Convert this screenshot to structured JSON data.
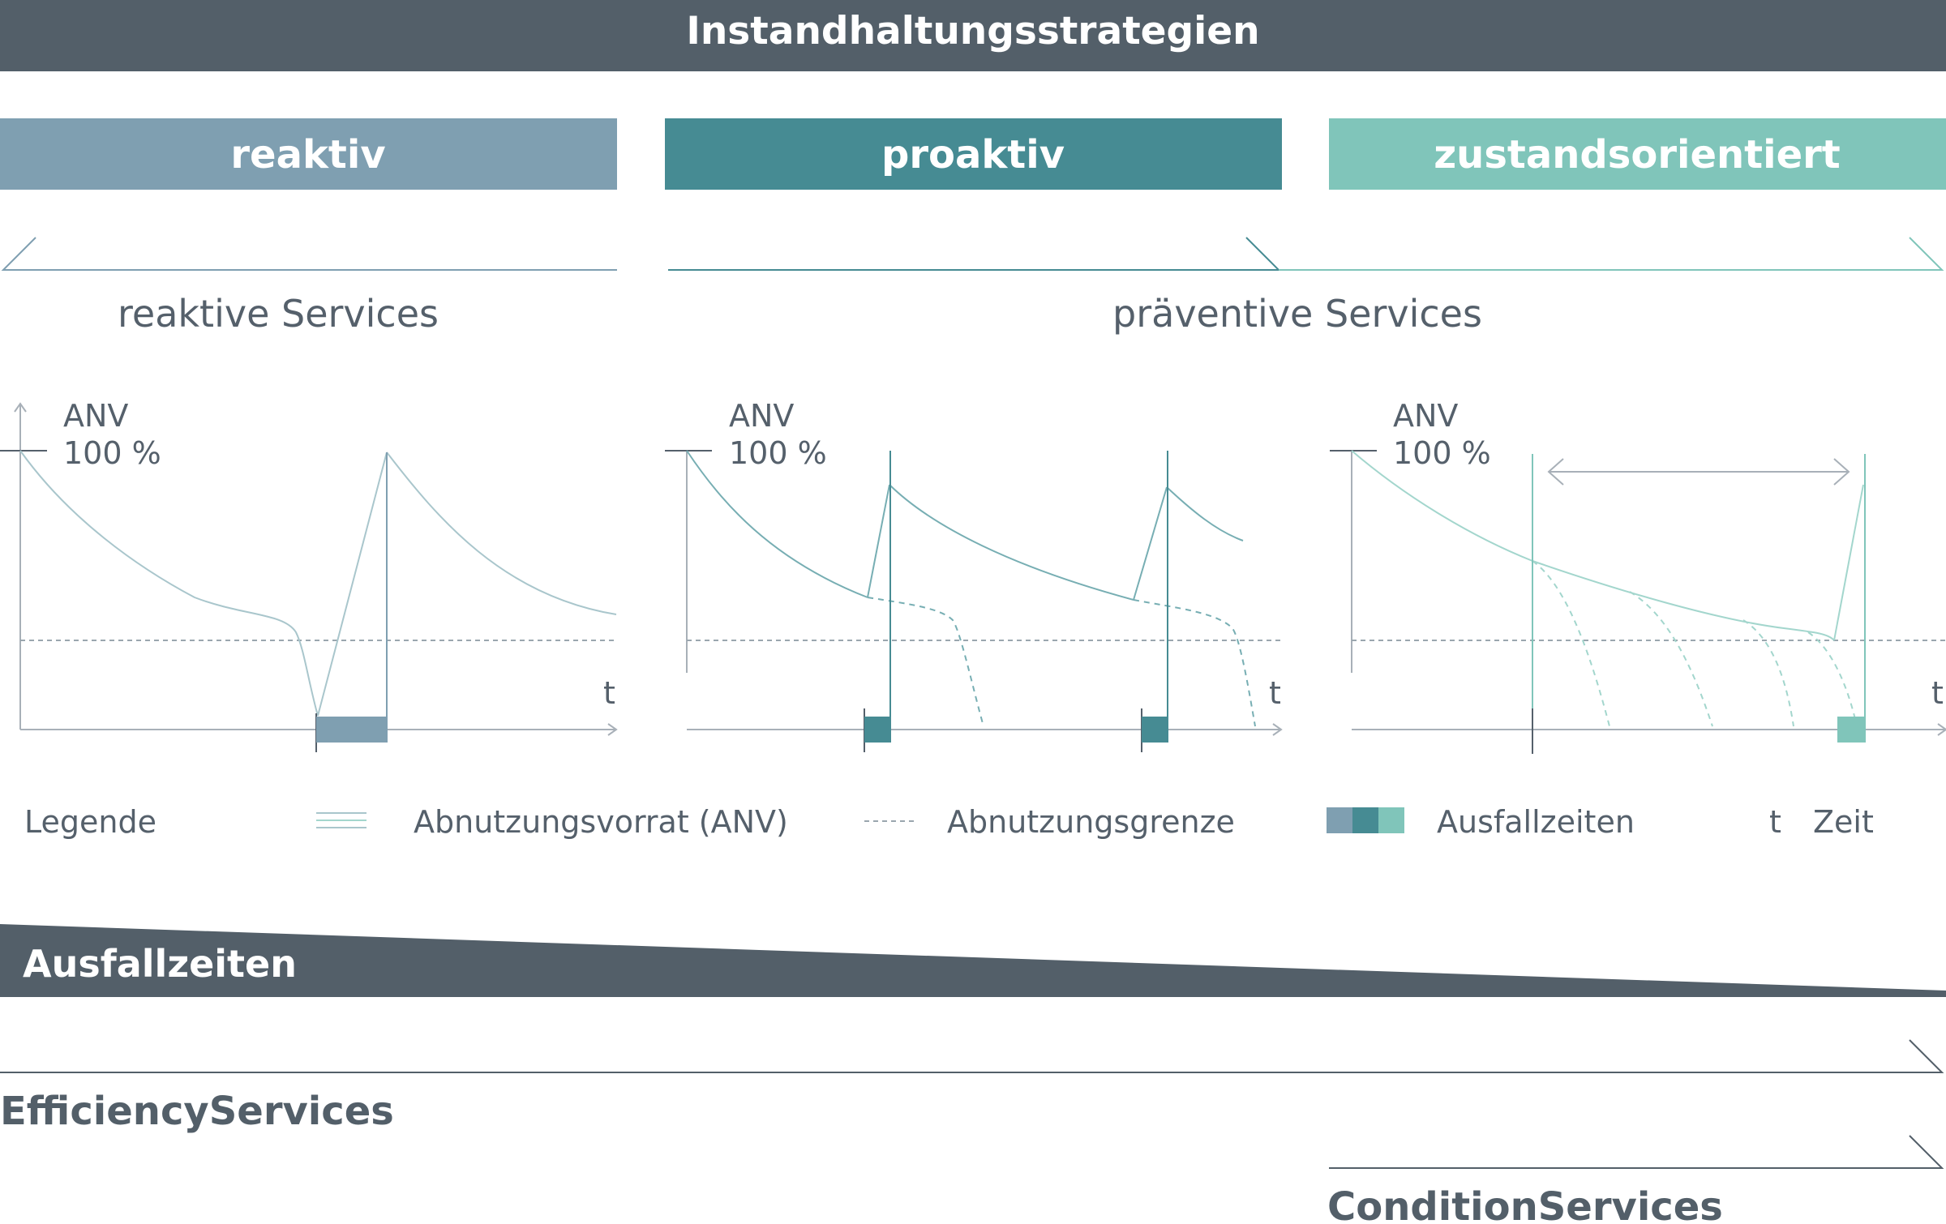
{
  "header": {
    "title": "Instandhaltungsstrategien"
  },
  "strategies": [
    {
      "label": "reaktiv",
      "color": "#7f9fb1"
    },
    {
      "label": "proaktiv",
      "color": "#468b93"
    },
    {
      "label": "zustandsorientiert",
      "color": "#80c5ba"
    }
  ],
  "service_groups": {
    "reactive": "reaktive Services",
    "preventive": "präventive Services"
  },
  "panels": [
    {
      "y_label": "ANV",
      "y_max": "100 %",
      "x_label": "t"
    },
    {
      "y_label": "ANV",
      "y_max": "100 %",
      "x_label": "t"
    },
    {
      "y_label": "ANV",
      "y_max": "100 %",
      "x_label": "t"
    }
  ],
  "legend": {
    "title": "Legende",
    "items": [
      {
        "symbol": "double-line",
        "label": "Abnutzungsvorrat (ANV)"
      },
      {
        "symbol": "dashed-line",
        "label": "Abnutzungsgrenze"
      },
      {
        "symbol": "color-blocks",
        "label": "Ausfallzeiten"
      }
    ],
    "t_symbol": "t",
    "t_label": "Zeit"
  },
  "downtime_bar": {
    "label": "Ausfallzeiten",
    "color": "#535f69"
  },
  "services": {
    "efficiency": "EfficiencyServices",
    "condition": "ConditionServices"
  },
  "colors": {
    "dark": "#535f69",
    "text": "#55606b",
    "axis": "#a8b0b8",
    "anv_light": "#a9c6cc",
    "anv_teal": "#77aeb3",
    "anv_mint": "#a3d6cd",
    "limit": "#9aa6ae"
  }
}
